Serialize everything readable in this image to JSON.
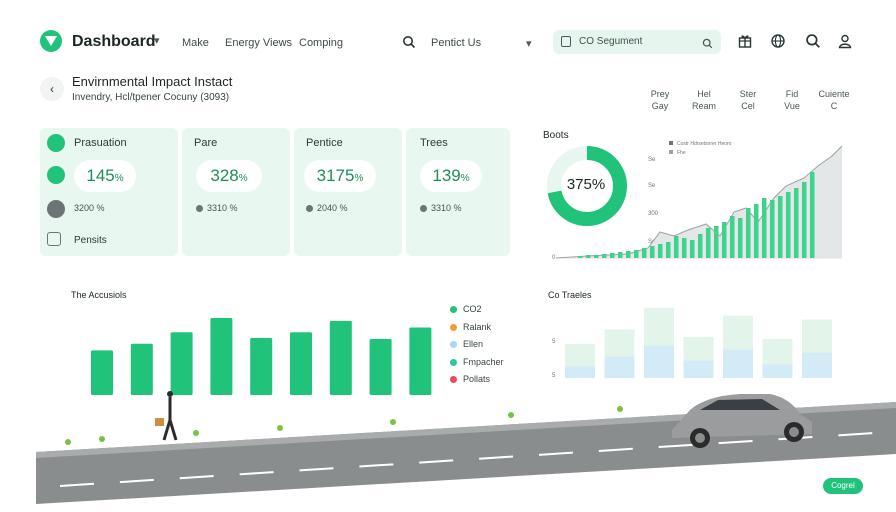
{
  "topbar": {
    "brand": "Dashboard",
    "nav": [
      "Make",
      "Energy Views",
      "Comping"
    ],
    "contact_label": "Pentict Us",
    "segment_label": "CO Segument",
    "icons": [
      "gift-icon",
      "globe-icon",
      "search-icon",
      "user-icon"
    ]
  },
  "header": {
    "title": "Envirnmental Impact Instact",
    "subtitle": "Invendry, Hcl/tpener Cocuny (3093)",
    "columns": [
      {
        "line1": "Prey",
        "line2": "Gay"
      },
      {
        "line1": "Hel",
        "line2": "Ream"
      },
      {
        "line1": "Ster",
        "line2": "Cel"
      },
      {
        "line1": "Fid",
        "line2": "Vue"
      },
      {
        "line1": "Cuiente",
        "line2": "C"
      }
    ]
  },
  "cards": [
    {
      "title": "Prasuation",
      "value": "145",
      "unit": "%",
      "meta": "3200 %",
      "footer": "Pensits"
    },
    {
      "title": "Pare",
      "value": "328",
      "unit": "%",
      "meta": "3310 %",
      "footer": ""
    },
    {
      "title": "Pentice",
      "value": "3175",
      "unit": "%",
      "meta": "2040 %",
      "footer": ""
    },
    {
      "title": "Trees",
      "value": "139",
      "unit": "%",
      "meta": "3310 %",
      "footer": ""
    }
  ],
  "donut": {
    "title": "Boots",
    "value": "375%",
    "fraction": 0.72
  },
  "area_chart": {
    "legend": [
      "Costr Hdrsetsnrer Heoro",
      "Fhe"
    ],
    "ticks": [
      "Se",
      "Se",
      "300",
      "Se",
      "0"
    ]
  },
  "bar_chart": {
    "title": "The Accusiols",
    "values": [
      47,
      54,
      66,
      81,
      60,
      66,
      78,
      59,
      71
    ]
  },
  "legend": [
    {
      "label": "CO2",
      "color": "#21c27a"
    },
    {
      "label": "Ralank",
      "color": "#f39c34"
    },
    {
      "label": "Ellen",
      "color": "#a8d8ef"
    },
    {
      "label": "Fmpacher",
      "color": "#2ec4a0"
    },
    {
      "label": "Pollats",
      "color": "#e84a5f"
    }
  ],
  "trend_chart": {
    "title": "Co Traeles",
    "ticks": [
      "",
      "5",
      "5"
    ],
    "series": [
      {
        "name": "",
        "values": [
          35,
          50,
          72,
          42,
          64,
          40,
          60
        ]
      },
      {
        "name": "",
        "values": [
          12,
          22,
          33,
          18,
          29,
          14,
          26
        ]
      }
    ]
  },
  "cta_label": "Cogrel",
  "colors": {
    "accent": "#21c27a",
    "card_bg": "#e8f7ef"
  }
}
